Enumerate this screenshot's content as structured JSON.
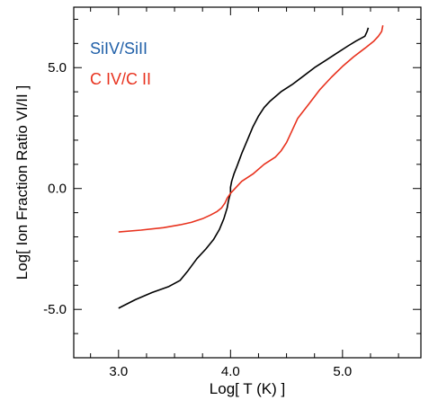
{
  "chart_data": {
    "type": "line",
    "title": "",
    "xlabel": "Log[ T (K) ]",
    "ylabel": "Log[ Ion Fraction Ratio VI/II ]",
    "xlim": [
      2.6,
      5.7
    ],
    "ylim": [
      -7.0,
      7.5
    ],
    "xticks": [
      3.0,
      4.0,
      5.0
    ],
    "xtick_labels": [
      "3.0",
      "4.0",
      "5.0"
    ],
    "yticks": [
      -5.0,
      0.0,
      5.0
    ],
    "ytick_labels": [
      "-5.0",
      "0.0",
      "5.0"
    ],
    "grid": false,
    "legend_placement": "top-left",
    "series": [
      {
        "name": "SiIV/SiII",
        "color": "#000000",
        "legend_color": "#1f5fa8",
        "x": [
          3.0,
          3.15,
          3.3,
          3.45,
          3.55,
          3.62,
          3.7,
          3.78,
          3.85,
          3.9,
          3.94,
          3.97,
          3.98,
          3.99,
          4.0,
          4.0,
          4.01,
          4.03,
          4.06,
          4.1,
          4.15,
          4.2,
          4.25,
          4.3,
          4.35,
          4.45,
          4.55,
          4.65,
          4.75,
          4.85,
          4.95,
          5.05,
          5.12,
          5.2,
          5.22,
          5.23
        ],
        "y": [
          -4.95,
          -4.6,
          -4.3,
          -4.05,
          -3.8,
          -3.4,
          -2.9,
          -2.5,
          -2.1,
          -1.7,
          -1.25,
          -0.8,
          -0.55,
          -0.35,
          -0.2,
          0.05,
          0.3,
          0.6,
          0.95,
          1.45,
          2.0,
          2.55,
          3.0,
          3.35,
          3.6,
          4.0,
          4.3,
          4.65,
          5.0,
          5.3,
          5.6,
          5.9,
          6.1,
          6.3,
          6.5,
          6.65
        ]
      },
      {
        "name": "C IV/C II",
        "color": "#e8321e",
        "legend_color": "#e8321e",
        "x": [
          3.0,
          3.2,
          3.4,
          3.55,
          3.65,
          3.75,
          3.82,
          3.88,
          3.92,
          3.95,
          3.97,
          4.0,
          4.05,
          4.1,
          4.2,
          4.3,
          4.4,
          4.45,
          4.5,
          4.55,
          4.6,
          4.7,
          4.8,
          4.9,
          5.0,
          5.1,
          5.2,
          5.28,
          5.32,
          5.35,
          5.36
        ],
        "y": [
          -1.8,
          -1.72,
          -1.62,
          -1.5,
          -1.4,
          -1.25,
          -1.1,
          -0.95,
          -0.8,
          -0.6,
          -0.4,
          -0.2,
          0.05,
          0.3,
          0.6,
          1.0,
          1.3,
          1.55,
          1.9,
          2.4,
          2.9,
          3.5,
          4.1,
          4.6,
          5.05,
          5.45,
          5.8,
          6.1,
          6.3,
          6.5,
          6.75
        ]
      }
    ],
    "legend": [
      {
        "label": "SiIV/SiII",
        "color": "#1f5fa8"
      },
      {
        "label": "C IV/C II",
        "color": "#e8321e"
      }
    ]
  }
}
